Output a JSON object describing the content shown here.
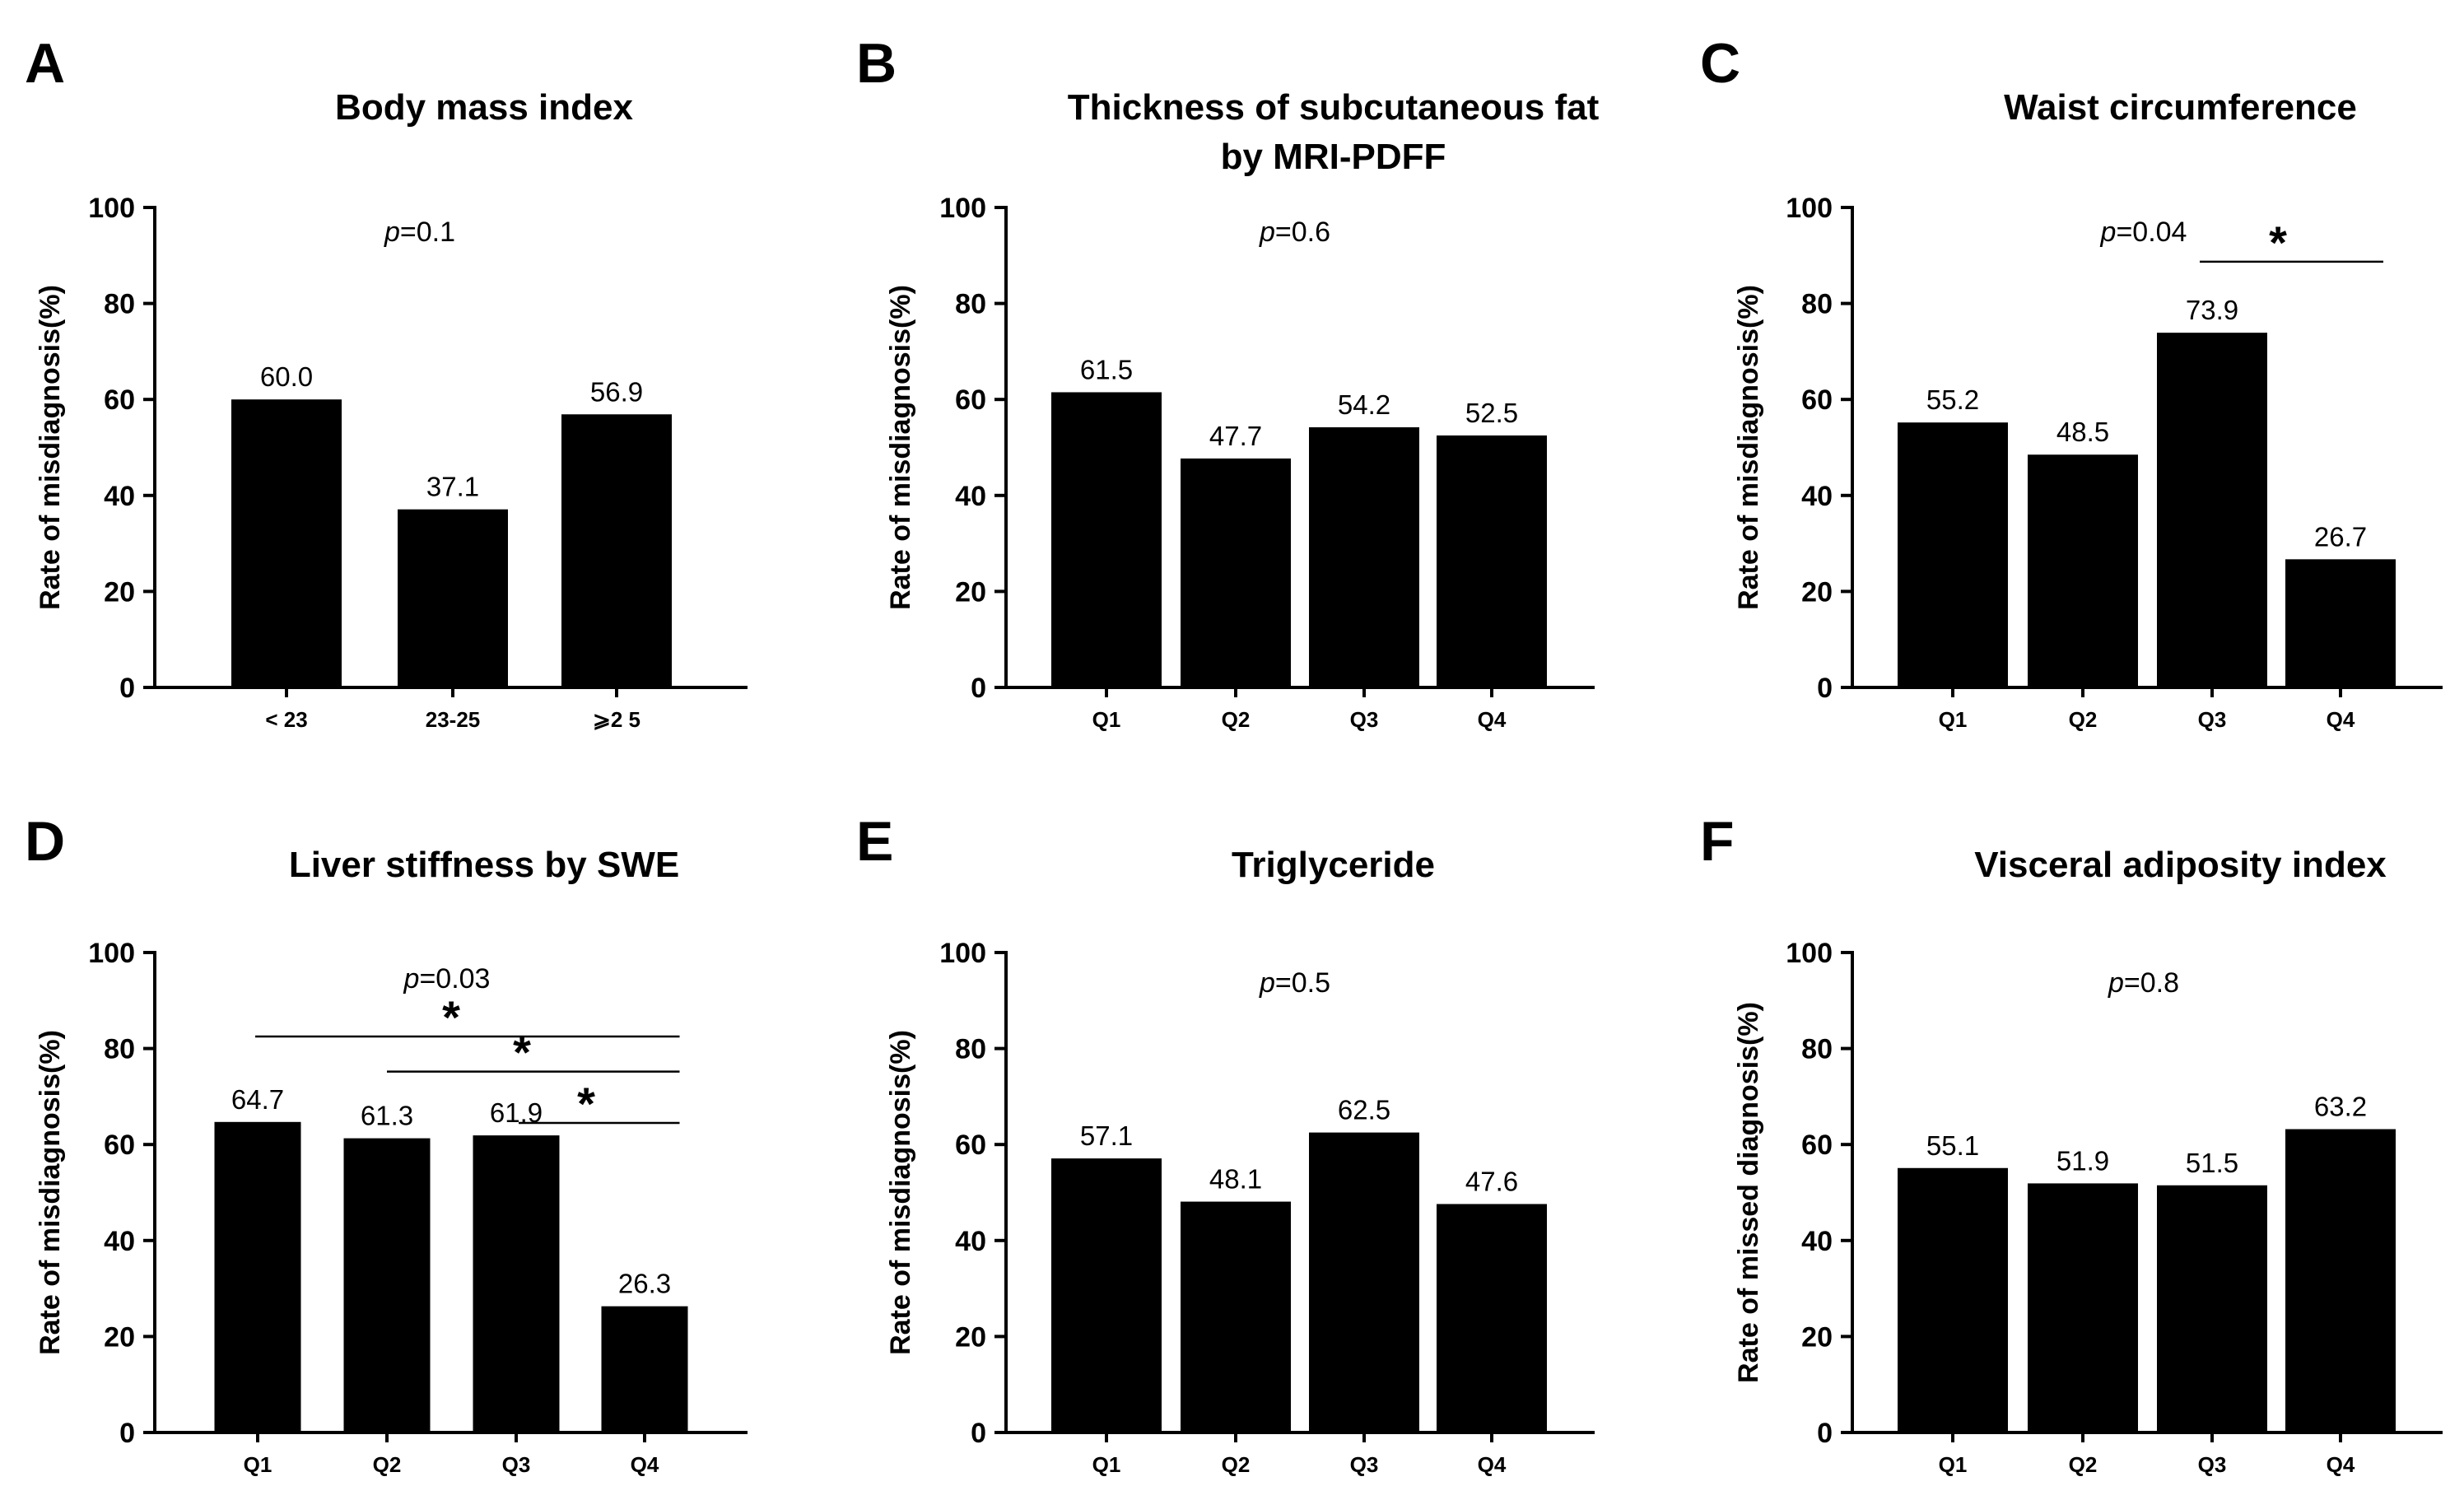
{
  "chart_data": [
    {
      "panel": "A",
      "type": "bar",
      "title": [
        "Body mass index"
      ],
      "ylabel": "Rate of misdiagnosis(%)",
      "xlabel": "",
      "ylim": [
        0,
        100
      ],
      "yticks": [
        0,
        20,
        40,
        60,
        80,
        100
      ],
      "categories": [
        "< 23",
        "23-25",
        "⩾2 5"
      ],
      "values": [
        60.0,
        37.1,
        56.9
      ],
      "value_labels": [
        "60.0",
        "37.1",
        "56.9"
      ],
      "p_prefix": "p",
      "p_value": "=0.1",
      "significance": []
    },
    {
      "panel": "B",
      "type": "bar",
      "title": [
        "Thickness of subcutaneous fat",
        "by MRI-PDFF"
      ],
      "ylabel": "Rate of misdiagnosis(%)",
      "xlabel": "",
      "ylim": [
        0,
        100
      ],
      "yticks": [
        0,
        20,
        40,
        60,
        80,
        100
      ],
      "categories": [
        "Q1",
        "Q2",
        "Q3",
        "Q4"
      ],
      "values": [
        61.5,
        47.7,
        54.2,
        52.5
      ],
      "value_labels": [
        "61.5",
        "47.7",
        "54.2",
        "52.5"
      ],
      "p_prefix": "p",
      "p_value": "=0.6",
      "significance": []
    },
    {
      "panel": "C",
      "type": "bar",
      "title": [
        "Waist circumference"
      ],
      "ylabel": "Rate of misdiagnosis(%)",
      "xlabel": "",
      "ylim": [
        0,
        100
      ],
      "yticks": [
        0,
        20,
        40,
        60,
        80,
        100
      ],
      "categories": [
        "Q1",
        "Q2",
        "Q3",
        "Q4"
      ],
      "values": [
        55.2,
        48.5,
        73.9,
        26.7
      ],
      "value_labels": [
        "55.2",
        "48.5",
        "73.9",
        "26.7"
      ],
      "p_prefix": "p",
      "p_value": "=0.04",
      "significance": [
        {
          "from": "Q3",
          "to": "Q4",
          "y": 88.7,
          "mark": "*"
        }
      ]
    },
    {
      "panel": "D",
      "type": "bar",
      "title": [
        "Liver stiffness by SWE"
      ],
      "ylabel": "Rate of misdiagnosis(%)",
      "xlabel": "",
      "ylim": [
        0,
        100
      ],
      "yticks": [
        0,
        20,
        40,
        60,
        80,
        100
      ],
      "categories": [
        "Q1",
        "Q2",
        "Q3",
        "Q4"
      ],
      "values": [
        64.7,
        61.3,
        61.9,
        26.3
      ],
      "value_labels": [
        "64.7",
        "61.3",
        "61.9",
        "26.3"
      ],
      "p_prefix": "p",
      "p_value": "=0.03",
      "significance": [
        {
          "from": "Q1",
          "to": "Q4",
          "y": 82.5,
          "mark": "*"
        },
        {
          "from": "Q2",
          "to": "Q4",
          "y": 75.2,
          "mark": "*"
        },
        {
          "from": "Q3",
          "to": "Q4",
          "y": 64.5,
          "mark": "*"
        }
      ]
    },
    {
      "panel": "E",
      "type": "bar",
      "title": [
        "Triglyceride"
      ],
      "ylabel": "Rate of misdiagnosis(%)",
      "xlabel": "",
      "ylim": [
        0,
        100
      ],
      "yticks": [
        0,
        20,
        40,
        60,
        80,
        100
      ],
      "categories": [
        "Q1",
        "Q2",
        "Q3",
        "Q4"
      ],
      "values": [
        57.1,
        48.1,
        62.5,
        47.6
      ],
      "value_labels": [
        "57.1",
        "48.1",
        "62.5",
        "47.6"
      ],
      "p_prefix": "p",
      "p_value": "=0.5",
      "significance": []
    },
    {
      "panel": "F",
      "type": "bar",
      "title": [
        "Visceral adiposity index"
      ],
      "ylabel": "Rate of missed diagnosis(%)",
      "xlabel": "",
      "ylim": [
        0,
        100
      ],
      "yticks": [
        0,
        20,
        40,
        60,
        80,
        100
      ],
      "categories": [
        "Q1",
        "Q2",
        "Q3",
        "Q4"
      ],
      "values": [
        55.1,
        51.9,
        51.5,
        63.2
      ],
      "value_labels": [
        "55.1",
        "51.9",
        "51.5",
        "63.2"
      ],
      "p_prefix": "p",
      "p_value": "=0.8",
      "significance": []
    }
  ]
}
